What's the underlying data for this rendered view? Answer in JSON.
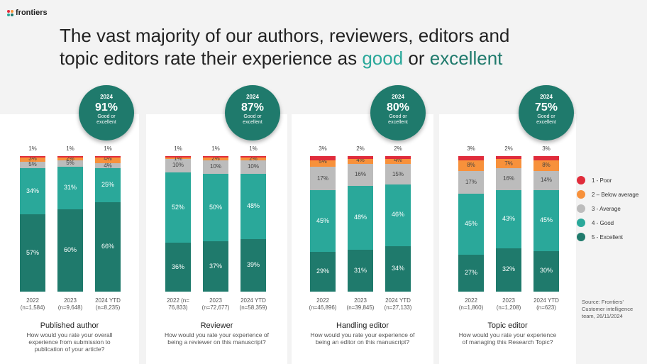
{
  "logo": {
    "text": "frontiers"
  },
  "title": {
    "line1": "The vast majority of our authors, reviewers, editors and",
    "line2_pre": "topic editors rate their experience as ",
    "good": "good",
    "mid": " or ",
    "excellent": "excellent"
  },
  "colors": {
    "poor": "#e02c3b",
    "below_average": "#f7913b",
    "average": "#bcbcbc",
    "good": "#2aa89a",
    "excellent": "#1f7a6c"
  },
  "legend": [
    {
      "key": "poor",
      "label": "1 - Poor"
    },
    {
      "key": "below_average",
      "label": "2 – Below average"
    },
    {
      "key": "average",
      "label": "3 - Average"
    },
    {
      "key": "good",
      "label": "4 - Good"
    },
    {
      "key": "excellent",
      "label": "5 - Excellent"
    }
  ],
  "source": "Source: Frontiers' Customer intelligence team, 26/11/2024",
  "chart_data": [
    {
      "type": "bar",
      "stacked": true,
      "title": "Published author",
      "question": "How would you rate your overall experience from submission to publication of your article?",
      "badge": {
        "year": "2024",
        "value": "91%",
        "label": "Good or excellent"
      },
      "categories": [
        "2022\n(n=1,584)",
        "2023\n(n=9,648)",
        "2024 YTD\n(n=8,235)"
      ],
      "series": [
        {
          "name": "5 - Excellent",
          "key": "excellent",
          "values": [
            57,
            60,
            66
          ]
        },
        {
          "name": "4 - Good",
          "key": "good",
          "values": [
            34,
            31,
            25
          ]
        },
        {
          "name": "3 - Average",
          "key": "average",
          "values": [
            5,
            5,
            4
          ]
        },
        {
          "name": "2 – Below average",
          "key": "below_average",
          "values": [
            3,
            2,
            4
          ]
        },
        {
          "name": "1 - Poor",
          "key": "poor",
          "values": [
            1,
            1,
            1
          ]
        }
      ],
      "labels": [
        {
          "excellent": "57%",
          "good": "34%",
          "average": "5%",
          "below_average": "3%",
          "poor": "1%"
        },
        {
          "excellent": "60%",
          "good": "31%",
          "average": "5%",
          "below_average": "2%",
          "poor": "1%"
        },
        {
          "excellent": "66%",
          "good": "25%",
          "average": "4%",
          "below_average": "4%",
          "poor": "1%"
        }
      ]
    },
    {
      "type": "bar",
      "stacked": true,
      "title": "Reviewer",
      "question": "How would you rate your experience of being a reviewer on this manuscript?",
      "badge": {
        "year": "2024",
        "value": "87%",
        "label": "Good or excellent"
      },
      "categories": [
        "2022 (n=\n76,833)",
        "2023\n(n=72,677)",
        "2024 YTD\n(n=58,359)"
      ],
      "series": [
        {
          "name": "5 - Excellent",
          "key": "excellent",
          "values": [
            36,
            37,
            39
          ]
        },
        {
          "name": "4 - Good",
          "key": "good",
          "values": [
            52,
            50,
            48
          ]
        },
        {
          "name": "3 - Average",
          "key": "average",
          "values": [
            10,
            10,
            10
          ]
        },
        {
          "name": "2 – Below average",
          "key": "below_average",
          "values": [
            1,
            2,
            2
          ]
        },
        {
          "name": "1 - Poor",
          "key": "poor",
          "values": [
            1,
            1,
            1
          ]
        }
      ],
      "labels": [
        {
          "excellent": "36%",
          "good": "52%",
          "average": "10%",
          "below_average": "1%",
          "poor": "1%"
        },
        {
          "excellent": "37%",
          "good": "50%",
          "average": "10%",
          "below_average": "2%",
          "poor": "1%"
        },
        {
          "excellent": "39%",
          "good": "48%",
          "average": "10%",
          "below_average": "2%",
          "poor": "1%"
        }
      ]
    },
    {
      "type": "bar",
      "stacked": true,
      "title": "Handling editor",
      "question": "How would you rate your experience of being an editor on this manuscript?",
      "badge": {
        "year": "2024",
        "value": "80%",
        "label": "Good or excellent"
      },
      "categories": [
        "2022\n(n=46,896)",
        "2023\n(n=39,845)",
        "2024 YTD\n(n=27,133)"
      ],
      "series": [
        {
          "name": "5 - Excellent",
          "key": "excellent",
          "values": [
            29,
            31,
            34
          ]
        },
        {
          "name": "4 - Good",
          "key": "good",
          "values": [
            45,
            48,
            46
          ]
        },
        {
          "name": "3 - Average",
          "key": "average",
          "values": [
            17,
            16,
            15
          ]
        },
        {
          "name": "2 – Below average",
          "key": "below_average",
          "values": [
            5,
            4,
            4
          ]
        },
        {
          "name": "1 - Poor",
          "key": "poor",
          "values": [
            3,
            2,
            2
          ]
        }
      ],
      "labels": [
        {
          "excellent": "29%",
          "good": "45%",
          "average": "17%",
          "below_average": "5%",
          "poor": "3%"
        },
        {
          "excellent": "31%",
          "good": "48%",
          "average": "16%",
          "below_average": "4%",
          "poor": "2%"
        },
        {
          "excellent": "34%",
          "good": "46%",
          "average": "15%",
          "below_average": "4%",
          "poor": "2%"
        }
      ]
    },
    {
      "type": "bar",
      "stacked": true,
      "title": "Topic editor",
      "question": "How would you rate your experience of managing this Research Topic?",
      "badge": {
        "year": "2024",
        "value": "75%",
        "label": "Good or excellent"
      },
      "categories": [
        "2022\n(n=1,860)",
        "2023\n(n=1,208)",
        "2024 YTD\n(n=623)"
      ],
      "series": [
        {
          "name": "5 - Excellent",
          "key": "excellent",
          "values": [
            27,
            32,
            30
          ]
        },
        {
          "name": "4 - Good",
          "key": "good",
          "values": [
            45,
            43,
            45
          ]
        },
        {
          "name": "3 - Average",
          "key": "average",
          "values": [
            17,
            16,
            14
          ]
        },
        {
          "name": "2 – Below average",
          "key": "below_average",
          "values": [
            8,
            7,
            8
          ]
        },
        {
          "name": "1 - Poor",
          "key": "poor",
          "values": [
            3,
            2,
            3
          ]
        }
      ],
      "labels": [
        {
          "excellent": "27%",
          "good": "45%",
          "average": "17%",
          "below_average": "8%",
          "poor": "3%"
        },
        {
          "excellent": "32%",
          "good": "43%",
          "average": "16%",
          "below_average": "7%",
          "poor": "2%"
        },
        {
          "excellent": "30%",
          "good": "45%",
          "average": "14%",
          "below_average": "8%",
          "poor": "3%"
        }
      ]
    }
  ]
}
